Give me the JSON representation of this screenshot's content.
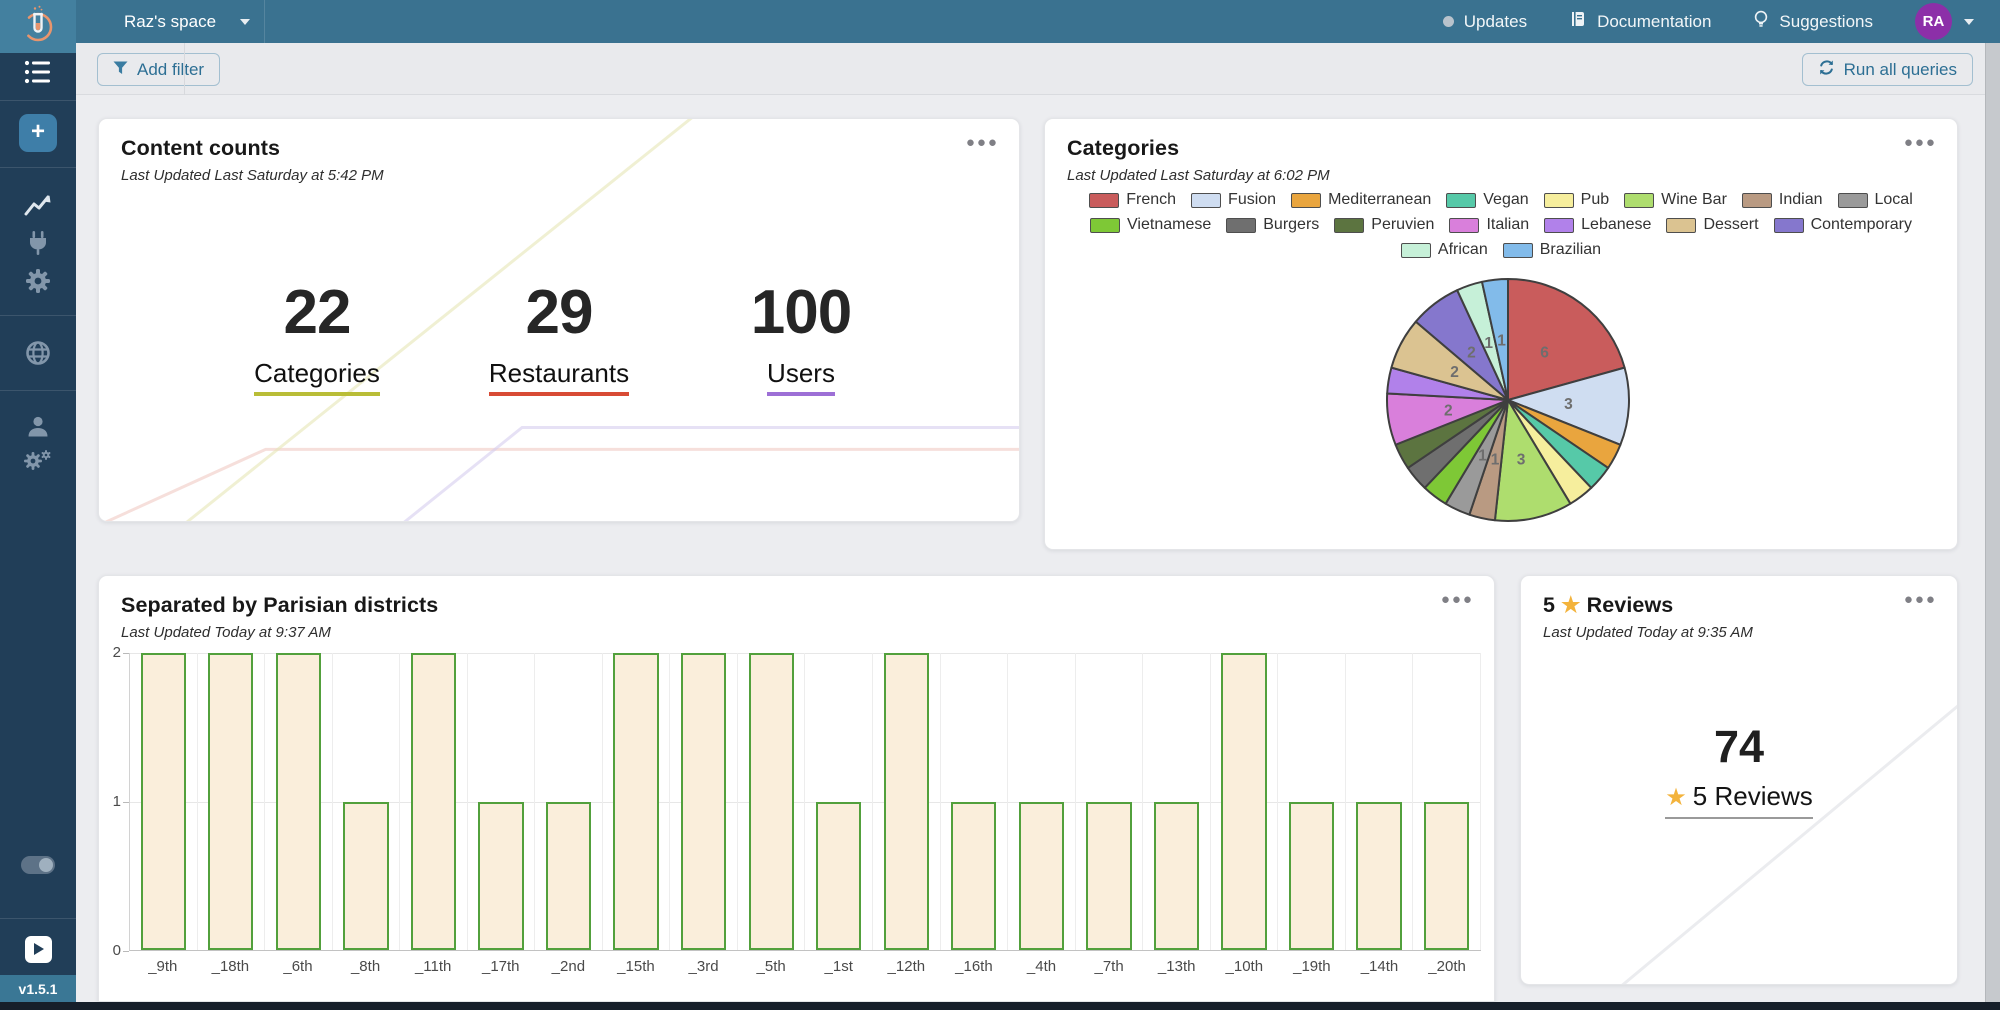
{
  "topbar": {
    "space_name": "Raz's space",
    "updates_label": "Updates",
    "documentation_label": "Documentation",
    "suggestions_label": "Suggestions",
    "avatar_initials": "RA"
  },
  "toolbar": {
    "add_filter_label": "Add filter",
    "run_all_label": "Run all queries"
  },
  "sidebar": {
    "version": "v1.5.1"
  },
  "cards": {
    "content_counts": {
      "title": "Content counts",
      "subtitle": "Last Updated Last Saturday at 5:42 PM",
      "metrics": [
        {
          "value": "22",
          "label": "Categories",
          "underline_color": "#b9bd37"
        },
        {
          "value": "29",
          "label": "Restaurants",
          "underline_color": "#d84b35"
        },
        {
          "value": "100",
          "label": "Users",
          "underline_color": "#9d6fd6"
        }
      ]
    },
    "categories": {
      "title": "Categories",
      "subtitle": "Last Updated Last Saturday at 6:02 PM"
    },
    "districts": {
      "title": "Separated by Parisian districts",
      "subtitle": "Last Updated Today at 9:37 AM"
    },
    "reviews": {
      "title_value": "5",
      "star_icon": "★",
      "title_word": "Reviews",
      "subtitle": "Last Updated Today at 9:35 AM",
      "value": "74",
      "metric_label": "5 Reviews"
    }
  },
  "chart_data": [
    {
      "type": "pie",
      "title": "Categories",
      "labels": [
        "French",
        "Fusion",
        "Mediterranean",
        "Vegan",
        "Pub",
        "Wine Bar",
        "Indian",
        "Local",
        "Vietnamese",
        "Burgers",
        "Peruvien",
        "Italian",
        "Lebanese",
        "Dessert",
        "Contemporary",
        "African",
        "Brazilian"
      ],
      "values": [
        6,
        3,
        1,
        1,
        1,
        3,
        1,
        1,
        1,
        1,
        1,
        2,
        1,
        2,
        2,
        1,
        1
      ],
      "colors": [
        "#c95c5c",
        "#cfddf1",
        "#e9a53e",
        "#56c9a8",
        "#f6ee9d",
        "#aedd6e",
        "#b99a82",
        "#9a9a9a",
        "#7ec836",
        "#6f6f6f",
        "#5c7440",
        "#d97fdb",
        "#b181ea",
        "#dbc391",
        "#8577cd",
        "#c6f0d8",
        "#82bbea"
      ],
      "value_label_visible": [
        true,
        true,
        false,
        false,
        false,
        true,
        true,
        true,
        false,
        false,
        false,
        true,
        false,
        true,
        true,
        true,
        true
      ],
      "legend_rows": [
        [
          0,
          1,
          2,
          3,
          4,
          5,
          6,
          7
        ],
        [
          8,
          9,
          10,
          11,
          12,
          13,
          14
        ],
        [
          15,
          16
        ]
      ],
      "legend_position": "top",
      "slice_border_color": "#3f3f3f"
    },
    {
      "type": "bar",
      "title": "Separated by Parisian districts",
      "categories": [
        "_9th",
        "_18th",
        "_6th",
        "_8th",
        "_11th",
        "_17th",
        "_2nd",
        "_15th",
        "_3rd",
        "_5th",
        "_1st",
        "_12th",
        "_16th",
        "_4th",
        "_7th",
        "_13th",
        "_10th",
        "_19th",
        "_14th",
        "_20th"
      ],
      "values": [
        2,
        2,
        2,
        1,
        2,
        1,
        1,
        2,
        2,
        2,
        1,
        2,
        1,
        1,
        1,
        1,
        2,
        1,
        1,
        1
      ],
      "xlabel": "",
      "ylabel": "",
      "ylim": [
        0,
        2
      ],
      "yticks": [
        0,
        1,
        2
      ],
      "grid": true,
      "bar_fill": "#faeedb",
      "bar_border": "#52a03c"
    }
  ]
}
